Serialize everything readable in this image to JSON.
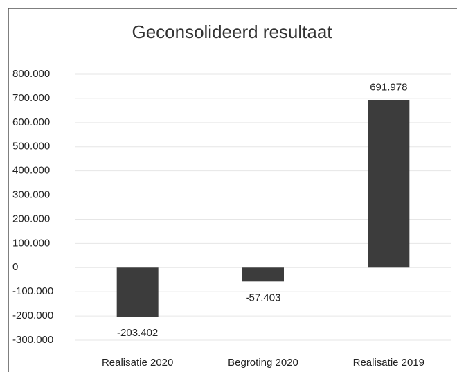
{
  "chart_data": {
    "type": "bar",
    "title": "Geconsolideerd resultaat",
    "categories": [
      "Realisatie 2020",
      "Begroting 2020",
      "Realisatie 2019"
    ],
    "values": [
      -203402,
      -57403,
      691978
    ],
    "value_labels": [
      "-203.402",
      "-57.403",
      "691.978"
    ],
    "color": "#3c3c3c",
    "ylim": [
      -300000,
      800000
    ],
    "yticks": [
      {
        "value": 800000,
        "label": "800.000"
      },
      {
        "value": 700000,
        "label": "700.000"
      },
      {
        "value": 600000,
        "label": "600.000"
      },
      {
        "value": 500000,
        "label": "500.000"
      },
      {
        "value": 400000,
        "label": "400.000"
      },
      {
        "value": 300000,
        "label": "300.000"
      },
      {
        "value": 200000,
        "label": "200.000"
      },
      {
        "value": 100000,
        "label": "100.000"
      },
      0,
      {
        "value": -100000,
        "label": "-100.000"
      },
      {
        "value": -200000,
        "label": "-200.000"
      },
      {
        "value": -300000,
        "label": "-300.000"
      }
    ],
    "grid": true
  }
}
